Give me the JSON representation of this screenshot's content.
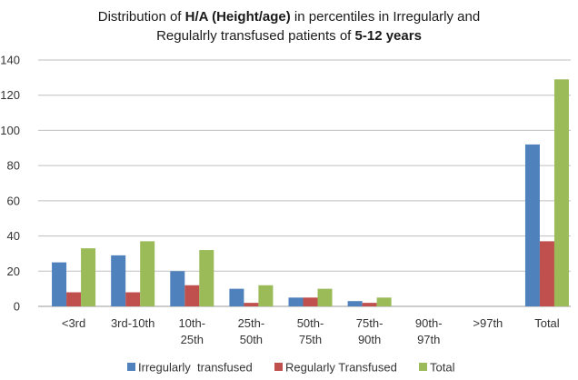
{
  "chart_data": {
    "type": "bar",
    "title_line1": {
      "before": "Distribution of ",
      "bold": "H/A (Height/age)",
      "after": " in percentiles in Irregularly and"
    },
    "title_line2": {
      "before": "Regulalrly transfused patients of ",
      "bold": "5-12 years",
      "after": ""
    },
    "categories": [
      [
        "<3rd"
      ],
      [
        "3rd-10th"
      ],
      [
        "10th-",
        "25th"
      ],
      [
        "25th-",
        "50th"
      ],
      [
        "50th-",
        "75th"
      ],
      [
        "75th-",
        "90th"
      ],
      [
        "90th-",
        "97th"
      ],
      [
        ">97th"
      ],
      [
        "Total"
      ]
    ],
    "series": [
      {
        "name": "Irregularly  transfused",
        "color": "#4f81bd",
        "values": [
          25,
          29,
          20,
          10,
          5,
          3,
          0,
          0,
          92
        ]
      },
      {
        "name": "Regularly Transfused",
        "color": "#c0504d",
        "values": [
          8,
          8,
          12,
          2,
          5,
          2,
          0,
          0,
          37
        ]
      },
      {
        "name": "Total",
        "color": "#9bbb59",
        "values": [
          33,
          37,
          32,
          12,
          10,
          5,
          0,
          0,
          129
        ]
      }
    ],
    "ylim": [
      0,
      140
    ],
    "yticks": [
      0,
      20,
      40,
      60,
      80,
      100,
      120,
      140
    ],
    "grid": true,
    "legend_position": "bottom"
  }
}
